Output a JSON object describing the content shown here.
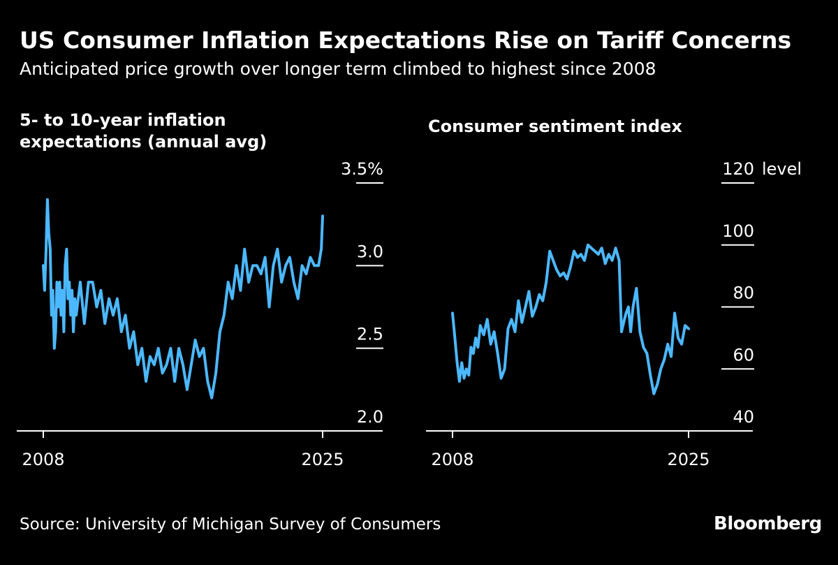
{
  "title": "US Consumer Inflation Expectations Rise on Tariff Concerns",
  "subtitle": "Anticipated price growth over longer term climbed to highest since 2008",
  "source": "Source: University of Michigan Survey of Consumers",
  "brand": "Bloomberg",
  "colors": {
    "background": "#000000",
    "line": "#4cb8ff",
    "text": "#ffffff",
    "axis": "#ffffff"
  },
  "chart_data": [
    {
      "type": "line",
      "title_lines": [
        "5- to 10-year inflation",
        "expectations (annual avg)"
      ],
      "xlim": [
        2008,
        2025
      ],
      "x_ticks": [
        "2008",
        "2025"
      ],
      "ylim": [
        2.0,
        3.5
      ],
      "y_ticks": [
        2.0,
        2.5,
        3.0,
        3.5
      ],
      "y_tick_labels": [
        "2.0",
        "2.5",
        "3.0",
        "3.5%"
      ],
      "series": [
        {
          "name": "5- to 10-year inflation expectations",
          "x": [
            2008.0,
            2008.08,
            2008.17,
            2008.25,
            2008.33,
            2008.42,
            2008.5,
            2008.58,
            2008.67,
            2008.75,
            2008.83,
            2008.92,
            2009.0,
            2009.08,
            2009.17,
            2009.25,
            2009.33,
            2009.42,
            2009.5,
            2009.58,
            2009.67,
            2009.75,
            2009.83,
            2009.92,
            2010.0,
            2010.25,
            2010.5,
            2010.75,
            2011.0,
            2011.25,
            2011.5,
            2011.75,
            2012.0,
            2012.25,
            2012.5,
            2012.75,
            2013.0,
            2013.25,
            2013.5,
            2013.75,
            2014.0,
            2014.25,
            2014.5,
            2014.75,
            2015.0,
            2015.25,
            2015.5,
            2015.75,
            2016.0,
            2016.25,
            2016.5,
            2016.75,
            2017.0,
            2017.25,
            2017.5,
            2017.75,
            2018.0,
            2018.25,
            2018.5,
            2018.75,
            2019.0,
            2019.25,
            2019.5,
            2019.75,
            2020.0,
            2020.25,
            2020.5,
            2020.75,
            2021.0,
            2021.25,
            2021.5,
            2021.75,
            2022.0,
            2022.25,
            2022.5,
            2022.75,
            2023.0,
            2023.25,
            2023.5,
            2023.75,
            2024.0,
            2024.25,
            2024.5,
            2024.75,
            2024.92,
            2025.0
          ],
          "values": [
            3.0,
            2.85,
            3.1,
            3.4,
            3.2,
            3.1,
            2.7,
            2.85,
            2.5,
            2.6,
            2.9,
            2.75,
            2.9,
            2.7,
            2.85,
            2.6,
            3.0,
            3.1,
            2.8,
            2.9,
            2.7,
            2.85,
            2.6,
            2.8,
            2.7,
            2.9,
            2.65,
            2.9,
            2.9,
            2.75,
            2.85,
            2.65,
            2.8,
            2.7,
            2.8,
            2.6,
            2.7,
            2.5,
            2.6,
            2.4,
            2.5,
            2.3,
            2.45,
            2.4,
            2.5,
            2.35,
            2.4,
            2.5,
            2.3,
            2.5,
            2.4,
            2.25,
            2.4,
            2.55,
            2.45,
            2.5,
            2.3,
            2.2,
            2.35,
            2.6,
            2.7,
            2.9,
            2.8,
            3.0,
            2.85,
            3.1,
            2.9,
            3.0,
            3.0,
            2.95,
            3.05,
            2.75,
            3.0,
            3.1,
            2.9,
            3.0,
            3.05,
            2.9,
            2.8,
            3.0,
            2.95,
            3.05,
            3.0,
            3.0,
            3.1,
            3.3
          ]
        }
      ]
    },
    {
      "type": "line",
      "title_lines": [
        "Consumer sentiment index"
      ],
      "xlim": [
        2008,
        2025
      ],
      "x_ticks": [
        "2008",
        "2025"
      ],
      "ylim": [
        40,
        120
      ],
      "y_ticks": [
        40,
        60,
        80,
        100,
        120
      ],
      "y_tick_labels": [
        "40",
        "60",
        "80",
        "100",
        "120"
      ],
      "y_unit_label": "level",
      "series": [
        {
          "name": "Consumer sentiment index",
          "x": [
            2008.0,
            2008.17,
            2008.33,
            2008.5,
            2008.67,
            2008.83,
            2009.0,
            2009.17,
            2009.33,
            2009.5,
            2009.67,
            2009.83,
            2010.0,
            2010.25,
            2010.5,
            2010.75,
            2011.0,
            2011.25,
            2011.5,
            2011.75,
            2012.0,
            2012.25,
            2012.5,
            2012.75,
            2013.0,
            2013.25,
            2013.5,
            2013.75,
            2014.0,
            2014.25,
            2014.5,
            2014.75,
            2015.0,
            2015.25,
            2015.5,
            2015.75,
            2016.0,
            2016.25,
            2016.5,
            2016.75,
            2017.0,
            2017.25,
            2017.5,
            2017.75,
            2018.0,
            2018.25,
            2018.5,
            2018.75,
            2019.0,
            2019.25,
            2019.5,
            2019.75,
            2020.0,
            2020.17,
            2020.33,
            2020.5,
            2020.67,
            2020.83,
            2021.0,
            2021.25,
            2021.5,
            2021.75,
            2022.0,
            2022.25,
            2022.5,
            2022.75,
            2023.0,
            2023.25,
            2023.5,
            2023.75,
            2024.0,
            2024.25,
            2024.5,
            2024.75,
            2025.0
          ],
          "values": [
            78,
            70,
            62,
            56,
            62,
            57,
            60,
            58,
            67,
            65,
            70,
            67,
            74,
            71,
            76,
            68,
            72,
            65,
            57,
            60,
            73,
            76,
            72,
            82,
            75,
            80,
            85,
            77,
            80,
            84,
            82,
            88,
            98,
            95,
            92,
            90,
            91,
            89,
            93,
            98,
            96,
            97,
            95,
            100,
            99,
            98,
            97,
            99,
            94,
            97,
            95,
            99,
            95,
            72,
            75,
            78,
            80,
            72,
            80,
            86,
            72,
            67,
            65,
            58,
            52,
            55,
            60,
            63,
            68,
            64,
            78,
            70,
            68,
            74,
            73
          ]
        }
      ]
    }
  ]
}
